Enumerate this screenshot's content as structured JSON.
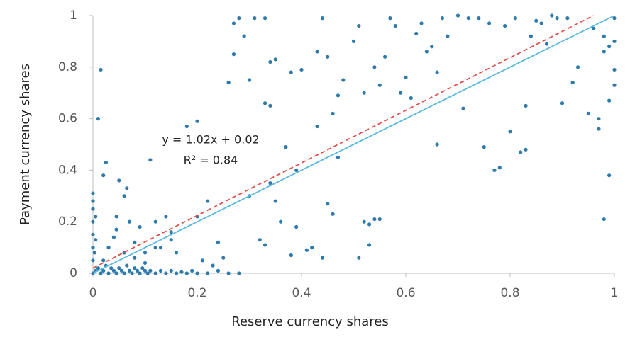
{
  "chart_data": {
    "type": "scatter",
    "xlabel": "Reserve currency shares",
    "ylabel": "Payment currency shares",
    "annotations": [
      "y = 1.02x + 0.02",
      "R² = 0.84"
    ],
    "xlim": [
      0,
      1
    ],
    "ylim": [
      0,
      1
    ],
    "xticks": [
      0,
      0.2,
      0.4,
      0.6,
      0.8,
      1
    ],
    "yticks": [
      0,
      0.2,
      0.4,
      0.6,
      0.8,
      1
    ],
    "grid": false,
    "series": [
      {
        "type": "scatter",
        "color": "#2e7bab",
        "x": [
          0,
          0.005,
          0.01,
          0.015,
          0.02,
          0.025,
          0.03,
          0.035,
          0.04,
          0.045,
          0.05,
          0.055,
          0.06,
          0.065,
          0.07,
          0.075,
          0.08,
          0.085,
          0.09,
          0.095,
          0.1,
          0.105,
          0.11,
          0.12,
          0.13,
          0.14,
          0.15,
          0.16,
          0.17,
          0.18,
          0.19,
          0.2,
          0.22,
          0.24,
          0.26,
          0.28,
          0,
          0,
          0,
          0,
          0,
          0,
          0,
          0.003,
          0.005,
          0.005,
          0.01,
          0.015,
          0.02,
          0.025,
          0.02,
          0.03,
          0.04,
          0.045,
          0.05,
          0.06,
          0.065,
          0.045,
          0.06,
          0.07,
          0.08,
          0.09,
          0.1,
          0.11,
          0.12,
          0.13,
          0.14,
          0.15,
          0.16,
          0.18,
          0.2,
          0.2,
          0.22,
          0.21,
          0.24,
          0.25,
          0.23,
          0.26,
          0.27,
          0.28,
          0.29,
          0.27,
          0.3,
          0.31,
          0.33,
          0.34,
          0.35,
          0.33,
          0.34,
          0.3,
          0.32,
          0.33,
          0.34,
          0.35,
          0.36,
          0.37,
          0.38,
          0.39,
          0.4,
          0.38,
          0.39,
          0.41,
          0.42,
          0.43,
          0.43,
          0.44,
          0.45,
          0.46,
          0.47,
          0.47,
          0.45,
          0.46,
          0.44,
          0.48,
          0.5,
          0.51,
          0.52,
          0.52,
          0.53,
          0.54,
          0.55,
          0.53,
          0.51,
          0.54,
          0.55,
          0.56,
          0.57,
          0.58,
          0.59,
          0.6,
          0.61,
          0.62,
          0.63,
          0.64,
          0.65,
          0.66,
          0.66,
          0.67,
          0.68,
          0.7,
          0.71,
          0.72,
          0.74,
          0.75,
          0.76,
          0.77,
          0.78,
          0.79,
          0.8,
          0.81,
          0.82,
          0.83,
          0.83,
          0.84,
          0.85,
          0.86,
          0.87,
          0.88,
          0.89,
          0.9,
          0.91,
          0.92,
          0.93,
          0.95,
          0.97,
          0.97,
          0.98,
          0.98,
          0.99,
          0.99,
          1,
          1,
          1,
          1,
          0.99,
          0.96,
          0.98,
          0.08,
          0.1,
          0.12,
          0.15
        ],
        "values": [
          0,
          0.01,
          0.02,
          0,
          0.01,
          0.03,
          0,
          0.02,
          0.01,
          0,
          0.02,
          0.01,
          0,
          0.03,
          0.01,
          0,
          0.02,
          0.01,
          0,
          0.02,
          0.01,
          0,
          0.01,
          0,
          0.01,
          0,
          0.01,
          0,
          0.005,
          0,
          0.01,
          0,
          0,
          0.01,
          0,
          0,
          0.05,
          0.1,
          0.15,
          0.2,
          0.25,
          0.28,
          0.31,
          0.08,
          0.13,
          0.22,
          0.6,
          0.79,
          0.38,
          0.43,
          0.05,
          0.1,
          0.14,
          0.22,
          0.36,
          0.3,
          0.33,
          0.17,
          0.08,
          0.2,
          0.12,
          0.18,
          0.04,
          0.44,
          0.2,
          0.1,
          0.22,
          0.16,
          0.08,
          0.57,
          0.59,
          0.22,
          0.28,
          0.05,
          0.12,
          0.06,
          0.03,
          0.74,
          0.97,
          0.99,
          0.92,
          0.85,
          0.75,
          0.99,
          0.99,
          0.82,
          0.83,
          0.66,
          0.65,
          0.3,
          0.13,
          0.11,
          0.35,
          0.28,
          0.2,
          0.49,
          0.78,
          0.4,
          0.79,
          0.07,
          0.18,
          0.09,
          0.1,
          0.57,
          0.86,
          0.99,
          0.84,
          0.62,
          0.69,
          0.45,
          0.27,
          0.23,
          0.06,
          0.75,
          0.9,
          0.96,
          0.7,
          0.2,
          0.19,
          0.21,
          0.21,
          0.11,
          0.06,
          0.8,
          0.73,
          0.84,
          0.99,
          0.96,
          0.7,
          0.76,
          0.68,
          0.93,
          0.97,
          0.86,
          0.88,
          0.78,
          0.5,
          0.99,
          0.92,
          1,
          0.64,
          0.99,
          0.99,
          0.49,
          0.97,
          0.4,
          0.41,
          0.96,
          0.55,
          0.99,
          0.47,
          0.48,
          0.65,
          0.92,
          0.98,
          0.97,
          0.89,
          1,
          0.99,
          0.66,
          0.99,
          0.74,
          0.8,
          0.62,
          0.56,
          0.6,
          0.86,
          0.21,
          0.38,
          0.88,
          0.79,
          0.9,
          0.99,
          0.73,
          0.67,
          0.95,
          0.92,
          0.06,
          0.08,
          0.1,
          0.13
        ]
      },
      {
        "type": "line",
        "color": "#5bb8de",
        "x": [
          0,
          1
        ],
        "values": [
          0,
          1
        ]
      },
      {
        "type": "line",
        "color": "#e0504a",
        "dash": true,
        "x": [
          0,
          0.96
        ],
        "values": [
          0.02,
          1
        ]
      }
    ]
  }
}
